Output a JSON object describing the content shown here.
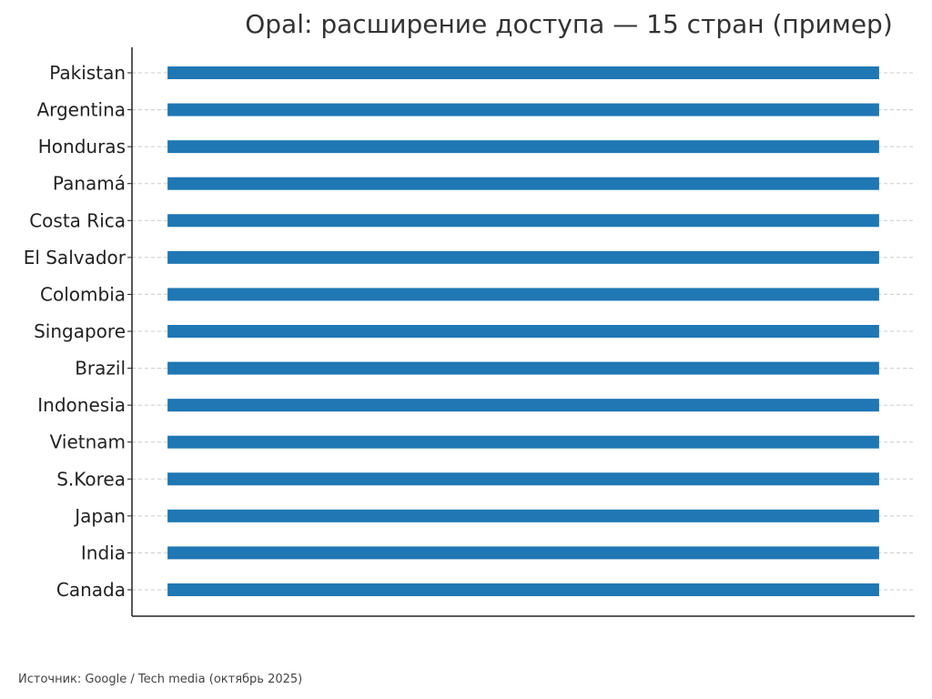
{
  "chart_data": {
    "type": "bar",
    "orientation": "horizontal",
    "title": "Opal: расширение доступа — 15 стран (пример)",
    "categories": [
      "Pakistan",
      "Argentina",
      "Honduras",
      "Panamá",
      "Costa Rica",
      "El Salvador",
      "Colombia",
      "Singapore",
      "Brazil",
      "Indonesia",
      "Vietnam",
      "S.Korea",
      "Japan",
      "India",
      "Canada"
    ],
    "values": [
      1,
      1,
      1,
      1,
      1,
      1,
      1,
      1,
      1,
      1,
      1,
      1,
      1,
      1,
      1
    ],
    "xlim": [
      -0.05,
      1.05
    ],
    "x_ticks_visible": false,
    "grid": "horizontal dashed",
    "legend": "none",
    "bar_color": "#1f77b4",
    "grid_color": "#c8ccd2",
    "axis_color": "#222222",
    "label_color": "#222222"
  },
  "footer": {
    "source": "Источник: Google / Tech media (октябрь 2025)"
  }
}
